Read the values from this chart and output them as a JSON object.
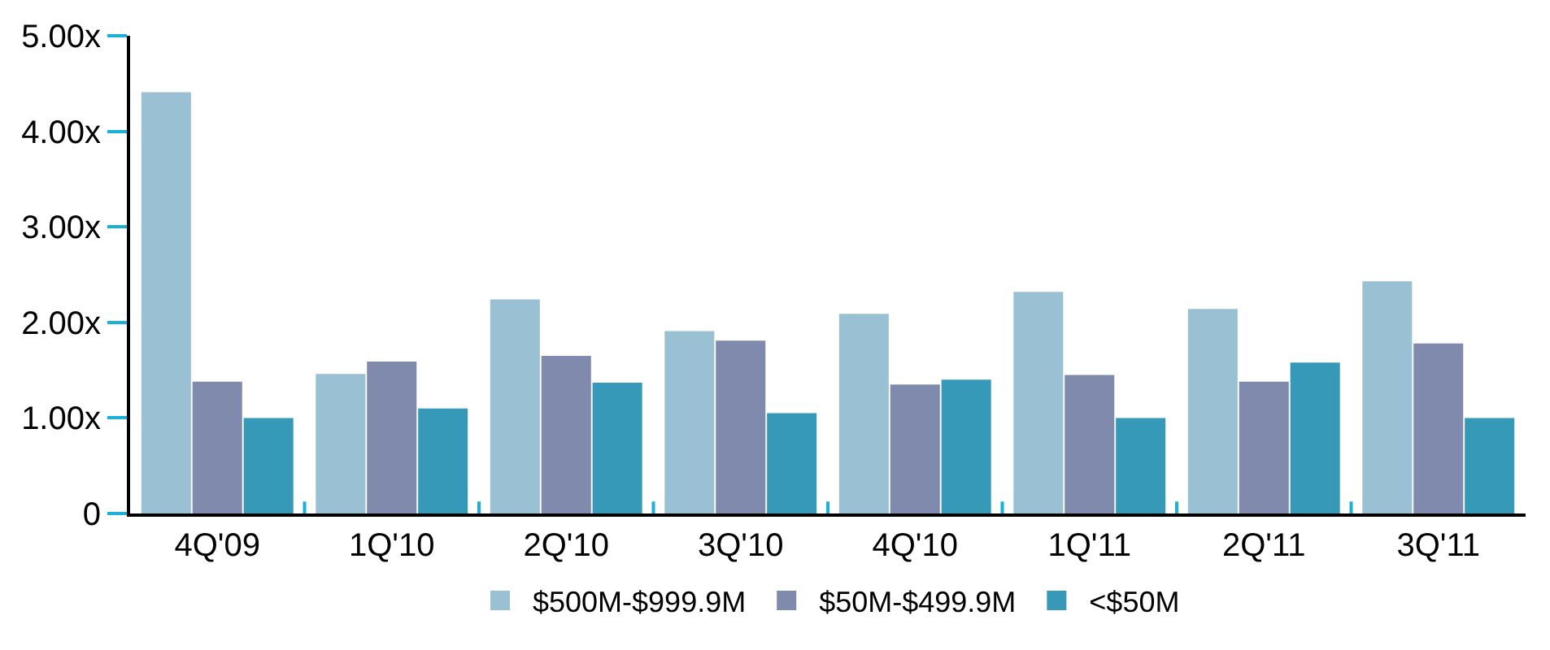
{
  "chart_data": {
    "type": "bar",
    "categories": [
      "4Q'09",
      "1Q'10",
      "2Q'10",
      "3Q'10",
      "4Q'10",
      "1Q'11",
      "2Q'11",
      "3Q'11"
    ],
    "series": [
      {
        "name": "$500M-$999.9M",
        "color": "#99c1d3",
        "values": [
          4.41,
          1.46,
          2.24,
          1.91,
          2.09,
          2.32,
          2.14,
          2.43
        ]
      },
      {
        "name": "$50M-$499.9M",
        "color": "#808aad",
        "values": [
          1.38,
          1.59,
          1.65,
          1.81,
          1.35,
          1.45,
          1.38,
          1.78
        ]
      },
      {
        "name": "<$50M",
        "color": "#3699b7",
        "values": [
          1.0,
          1.1,
          1.37,
          1.05,
          1.4,
          1.0,
          1.58,
          1.0
        ]
      }
    ],
    "ylim": [
      0,
      5
    ],
    "yticks": [
      0,
      {
        "value": 1,
        "label": "1.00x"
      },
      {
        "value": 2,
        "label": "2.00x"
      },
      {
        "value": 3,
        "label": "3.00x"
      },
      {
        "value": 4,
        "label": "4.00x"
      },
      {
        "value": 5,
        "label": "5.00x"
      }
    ],
    "legend": "bottom"
  }
}
